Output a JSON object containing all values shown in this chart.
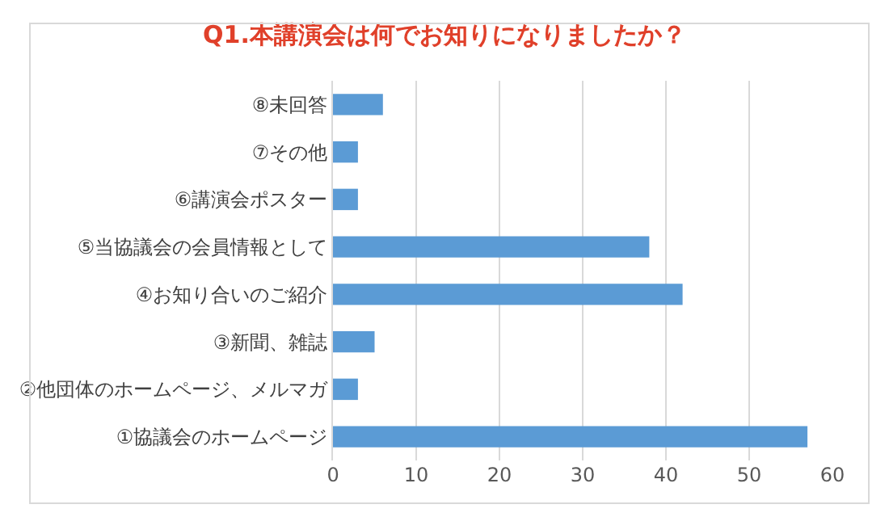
{
  "chart_data": {
    "type": "bar",
    "orientation": "horizontal",
    "title": "Q1.本講演会は何でお知りになりましたか？",
    "categories": [
      "⑧未回答",
      "⑦その他",
      "⑥講演会ポスター",
      "⑤当協議会の会員情報として",
      "④お知り合いのご紹介",
      "③新聞、雑誌",
      "②他団体のホームページ、メルマガ",
      "①協議会のホームページ"
    ],
    "values": [
      6,
      3,
      3,
      38,
      42,
      5,
      3,
      57
    ],
    "color": "#5b9bd5",
    "xlim": [
      0,
      60
    ],
    "xticks": [
      0,
      10,
      20,
      30,
      40,
      50,
      60
    ],
    "grid": "x"
  }
}
